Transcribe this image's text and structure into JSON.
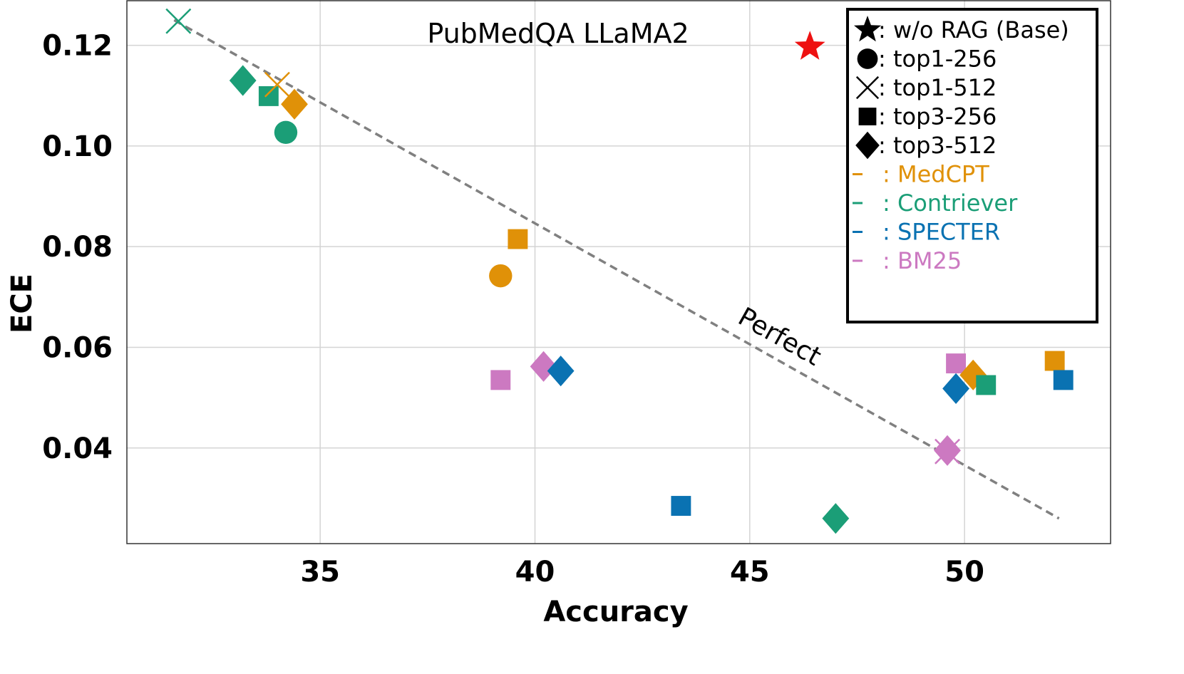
{
  "chart_data": {
    "type": "scatter",
    "title": "PubMedQA LLaMA2",
    "xlabel": "Accuracy",
    "ylabel": "ECE",
    "xlim": [
      30.5,
      53.4
    ],
    "ylim": [
      0.021,
      0.129
    ],
    "xticks": [
      35,
      40,
      45,
      50
    ],
    "yticks": [
      0.04,
      0.06,
      0.08,
      0.1,
      0.12
    ],
    "ytick_labels": [
      "0.04",
      "0.06",
      "0.08",
      "0.10",
      "0.12"
    ],
    "grid": true,
    "legend_placement": "top-right",
    "colors": {
      "MedCPT": "#E09108",
      "Contriever": "#1B9E77",
      "SPECTER": "#0A72B2",
      "BM25": "#CC79C1",
      "base": "#EE1111",
      "reference": "#808080"
    },
    "reference_line": {
      "label": "Perfect",
      "x": [
        31.6,
        52.2
      ],
      "y": [
        0.125,
        0.026
      ]
    },
    "legend": {
      "markers": [
        {
          "marker": "star",
          "label": ": w/o RAG (Base)"
        },
        {
          "marker": "circle",
          "label": ": top1-256"
        },
        {
          "marker": "x",
          "label": ": top1-512"
        },
        {
          "marker": "square",
          "label": ": top3-256"
        },
        {
          "marker": "diamond",
          "label": ": top3-512"
        }
      ],
      "retrievers": [
        {
          "name": "MedCPT",
          "label": ": MedCPT"
        },
        {
          "name": "Contriever",
          "label": ": Contriever"
        },
        {
          "name": "SPECTER",
          "label": ": SPECTER"
        },
        {
          "name": "BM25",
          "label": ": BM25"
        }
      ]
    },
    "points": [
      {
        "series": "Base",
        "marker": "star",
        "x": 46.4,
        "y": 0.1197
      },
      {
        "series": "Contriever",
        "marker": "x",
        "x": 31.7,
        "y": 0.1248
      },
      {
        "series": "Contriever",
        "marker": "diamond",
        "x": 33.2,
        "y": 0.113
      },
      {
        "series": "Contriever",
        "marker": "square",
        "x": 33.8,
        "y": 0.1099
      },
      {
        "series": "Contriever",
        "marker": "circle",
        "x": 34.2,
        "y": 0.1027
      },
      {
        "series": "MedCPT",
        "marker": "x",
        "x": 34.0,
        "y": 0.1122
      },
      {
        "series": "MedCPT",
        "marker": "diamond",
        "x": 34.4,
        "y": 0.1083
      },
      {
        "series": "MedCPT",
        "marker": "square",
        "x": 39.6,
        "y": 0.0815
      },
      {
        "series": "MedCPT",
        "marker": "circle",
        "x": 39.2,
        "y": 0.0742
      },
      {
        "series": "BM25",
        "marker": "square",
        "x": 39.2,
        "y": 0.0535
      },
      {
        "series": "BM25",
        "marker": "diamond",
        "x": 40.2,
        "y": 0.0562
      },
      {
        "series": "SPECTER",
        "marker": "diamond",
        "x": 40.6,
        "y": 0.0553
      },
      {
        "series": "SPECTER",
        "marker": "square",
        "x": 43.4,
        "y": 0.0285
      },
      {
        "series": "Contriever",
        "marker": "diamond",
        "x": 47.0,
        "y": 0.026
      },
      {
        "series": "BM25",
        "marker": "diamond",
        "x": 49.6,
        "y": 0.0395
      },
      {
        "series": "BM25",
        "marker": "x",
        "x": 49.6,
        "y": 0.0393
      },
      {
        "series": "BM25",
        "marker": "square",
        "x": 49.8,
        "y": 0.0568
      },
      {
        "series": "SPECTER",
        "marker": "diamond",
        "x": 49.8,
        "y": 0.0518
      },
      {
        "series": "MedCPT",
        "marker": "diamond",
        "x": 50.2,
        "y": 0.0545
      },
      {
        "series": "Contriever",
        "marker": "square",
        "x": 50.5,
        "y": 0.0525
      },
      {
        "series": "MedCPT",
        "marker": "square",
        "x": 52.1,
        "y": 0.0573
      },
      {
        "series": "SPECTER",
        "marker": "square",
        "x": 52.3,
        "y": 0.0535
      }
    ]
  }
}
